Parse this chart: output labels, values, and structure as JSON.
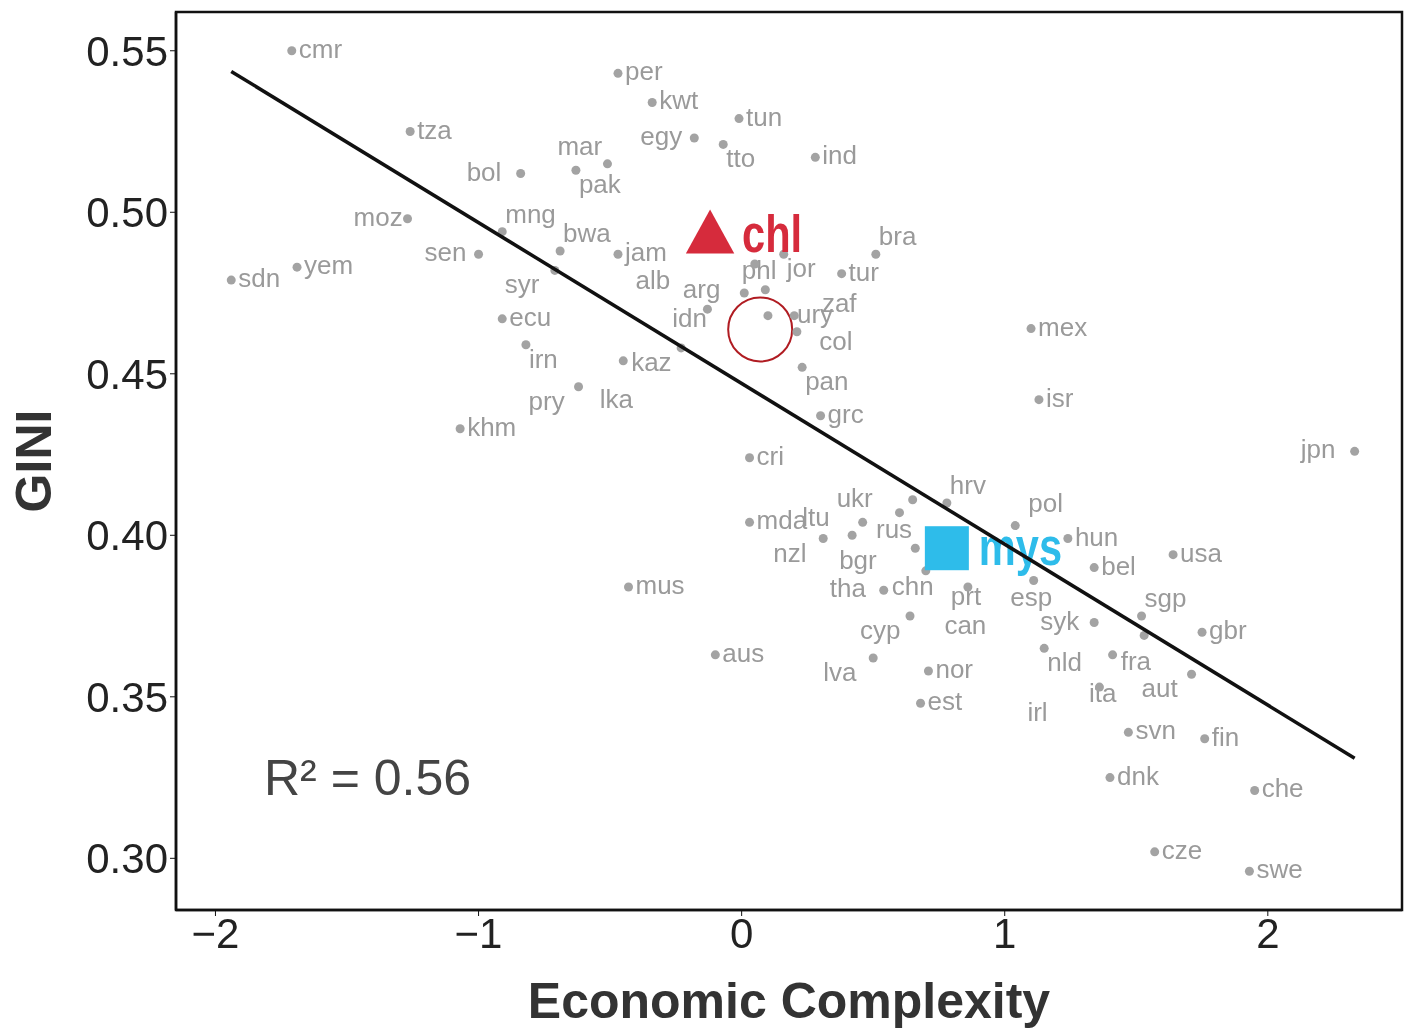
{
  "chart_data": {
    "type": "scatter",
    "xlabel": "Economic Complexity",
    "ylabel": "GINI",
    "xlim": [
      -2.15,
      2.51
    ],
    "ylim": [
      0.284,
      0.562
    ],
    "xticks": [
      {
        "value": -2,
        "label": "−2"
      },
      {
        "value": -1,
        "label": "−1"
      },
      0,
      1,
      2
    ],
    "yticks": [
      {
        "value": 0.3,
        "label": "0.30"
      },
      {
        "value": 0.35,
        "label": "0.35"
      },
      {
        "value": 0.4,
        "label": "0.40"
      },
      {
        "value": 0.45,
        "label": "0.45"
      },
      {
        "value": 0.5,
        "label": "0.50"
      },
      {
        "value": 0.55,
        "label": "0.55"
      }
    ],
    "grid": false,
    "legend": false,
    "annotations": [
      "R² = 0.56"
    ],
    "series": [
      {
        "marker": "circle",
        "color": "#a3a3a3",
        "x": [
          -1.71,
          -0.47,
          -0.34,
          -0.01,
          -0.18,
          -0.07,
          0.28,
          -1.26,
          -0.63,
          -0.84,
          -0.51,
          -1.27,
          -0.91,
          -1.0,
          -0.69,
          -0.71,
          -0.47,
          -1.94,
          -1.69,
          0.05,
          0.16,
          0.38,
          0.51,
          0.09,
          0.01,
          -0.13,
          0.1,
          0.2,
          0.21,
          -0.23,
          -0.91,
          -0.82,
          -0.45,
          -0.62,
          0.23,
          0.3,
          -1.07,
          1.1,
          1.13,
          2.33,
          0.03,
          0.65,
          0.78,
          0.6,
          0.46,
          0.03,
          1.04,
          0.31,
          0.42,
          0.66,
          1.24,
          1.64,
          1.34,
          0.7,
          0.86,
          1.11,
          0.54,
          -0.43,
          1.52,
          1.53,
          1.34,
          0.64,
          1.75,
          -0.1,
          0.5,
          1.15,
          1.41,
          0.71,
          1.71,
          1.36,
          0.68,
          1.47,
          1.76,
          1.4,
          1.95,
          1.57,
          1.93
        ],
        "values": [
          0.55,
          0.543,
          0.534,
          0.529,
          0.523,
          0.521,
          0.517,
          0.525,
          0.513,
          0.512,
          0.515,
          0.498,
          0.494,
          0.487,
          0.488,
          0.482,
          0.487,
          0.479,
          0.483,
          0.484,
          0.487,
          0.481,
          0.487,
          0.476,
          0.475,
          0.47,
          0.468,
          0.468,
          0.463,
          0.458,
          0.467,
          0.459,
          0.454,
          0.446,
          0.452,
          0.437,
          0.433,
          0.464,
          0.442,
          0.426,
          0.424,
          0.411,
          0.41,
          0.407,
          0.404,
          0.404,
          0.403,
          0.399,
          0.4,
          0.396,
          0.399,
          0.394,
          0.39,
          0.389,
          0.384,
          0.386,
          0.383,
          0.384,
          0.375,
          0.369,
          0.373,
          0.375,
          0.37,
          0.363,
          0.362,
          0.365,
          0.363,
          0.358,
          0.357,
          0.353,
          0.348,
          0.339,
          0.337,
          0.325,
          0.321,
          0.302,
          0.296
        ],
        "value_labels": [
          "cmr",
          "per",
          "kwt",
          "tun",
          "egy",
          "tto",
          "ind",
          "tza",
          "pak",
          "bol",
          "mar",
          "moz",
          "mng",
          "sen",
          "bwa",
          "syr",
          "jam",
          "sdn",
          "yem",
          "arg",
          "jor",
          "tur",
          "bra",
          "phl",
          "idn",
          "alb",
          "ury",
          "col",
          "zaf",
          "kaz",
          "ecu",
          "irn",
          "lka",
          "pry",
          "pan",
          "grc",
          "khm",
          "mex",
          "isr",
          "jpn",
          "cri",
          "ukr",
          "hrv",
          "rus",
          "bgr",
          "mda",
          "pol",
          "nzl",
          "ltu",
          "chn",
          "hun",
          "usa",
          "bel",
          "prt",
          "can",
          "esp",
          "tha",
          "mus",
          "sgp",
          "fra",
          "syk",
          "cyp",
          "gbr",
          "aus",
          "lva",
          "nld",
          "ita",
          "nor",
          "aut",
          "irl",
          "est",
          "svn",
          "fin",
          "dnk",
          "che",
          "cze",
          "swe"
        ]
      },
      {
        "type": "scatter",
        "name": "chl",
        "marker": "triangle",
        "color": "#d62b3c",
        "x": [
          -0.12
        ],
        "values": [
          0.493
        ]
      },
      {
        "type": "scatter",
        "name": "mys",
        "marker": "square",
        "color": "#2ebcea",
        "x": [
          0.78
        ],
        "values": [
          0.396
        ]
      },
      {
        "type": "line",
        "marker": "none",
        "line_style": "solid",
        "color": "#111111",
        "x": [
          -1.94,
          2.33
        ],
        "values": [
          0.5436,
          0.331
        ]
      }
    ]
  }
}
